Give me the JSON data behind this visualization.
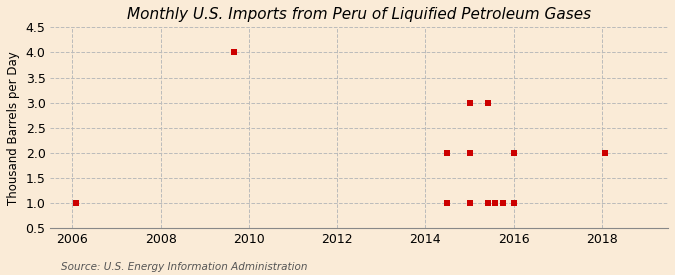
{
  "title": "Monthly U.S. Imports from Peru of Liquified Petroleum Gases",
  "ylabel": "Thousand Barrels per Day",
  "source": "Source: U.S. Energy Information Administration",
  "background_color": "#faebd7",
  "plot_bg_color": "#faebd7",
  "marker_color": "#cc0000",
  "marker_size": 16,
  "xlim": [
    2005.5,
    2019.5
  ],
  "ylim": [
    0.5,
    4.5
  ],
  "yticks": [
    0.5,
    1.0,
    1.5,
    2.0,
    2.5,
    3.0,
    3.5,
    4.0,
    4.5
  ],
  "xticks": [
    2006,
    2008,
    2010,
    2012,
    2014,
    2016,
    2018
  ],
  "data_x": [
    2006.08,
    2009.67,
    2014.5,
    2014.5,
    2015.0,
    2015.0,
    2015.0,
    2015.42,
    2015.42,
    2015.58,
    2015.75,
    2016.0,
    2016.0,
    2018.08
  ],
  "data_y": [
    1.0,
    4.0,
    1.0,
    2.0,
    1.0,
    2.0,
    3.0,
    1.0,
    3.0,
    1.0,
    1.0,
    1.0,
    2.0,
    2.0
  ],
  "title_fontsize": 11,
  "label_fontsize": 8.5,
  "tick_fontsize": 9,
  "source_fontsize": 7.5,
  "grid_color": "#bbbbbb",
  "grid_linestyle": "--",
  "grid_linewidth": 0.7
}
